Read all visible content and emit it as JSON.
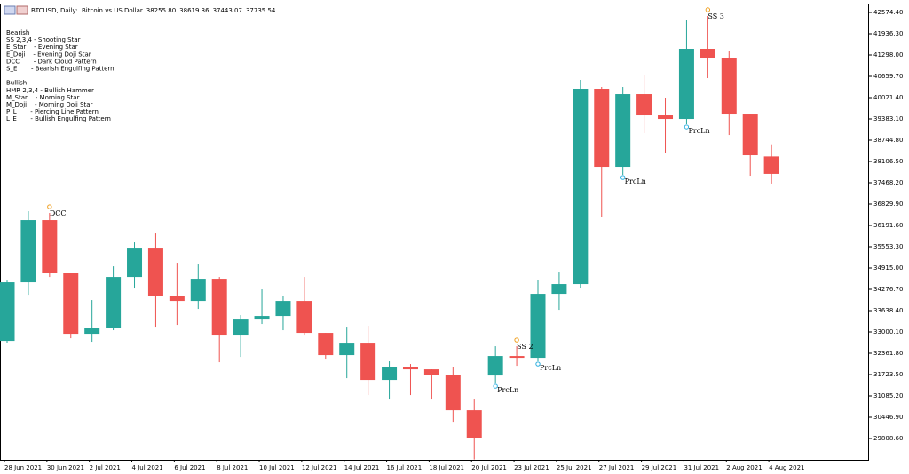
{
  "chart_data": {
    "type": "candlestick",
    "title": "BTCUSD, Daily:  Bitcoin vs US Dollar",
    "ohlc_text": [
      "38255.80",
      "38619.36",
      "37443.07",
      "37735.54"
    ],
    "notes": [
      "Bearish",
      "SS 2,3,4 - Shooting Star",
      "E_Star    - Evening Star",
      "E_Doji    - Evening Doji Star",
      "DCC       - Dark Cloud Pattern",
      "S_E       - Bearish Engulfing Pattern",
      "",
      "Bullish",
      "HMR 2,3,4 - Bullish Hammer",
      "M_Star    - Morning Star",
      "M_Doji    - Morning Doji Star",
      "P_L       - Piercing Line Pattern",
      "L_E       - Bullish Engulfing Pattern"
    ],
    "categories": [
      "28 Jun 2021",
      null,
      "30 Jun 2021",
      null,
      "2 Jul 2021",
      null,
      "4 Jul 2021",
      null,
      "6 Jul 2021",
      null,
      "8 Jul 2021",
      null,
      "10 Jul 2021",
      null,
      "12 Jul 2021",
      null,
      "14 Jul 2021",
      null,
      "16 Jul 2021",
      null,
      "18 Jul 2021",
      null,
      "20 Jul 2021",
      null,
      "23 Jul 2021",
      null,
      "25 Jul 2021",
      null,
      "27 Jul 2021",
      null,
      "29 Jul 2021",
      null,
      "31 Jul 2021",
      null,
      "2 Aug 2021",
      null,
      "4 Aug 2021"
    ],
    "open": [
      32732,
      34488,
      36350,
      34780,
      32945,
      33131,
      34647,
      35525,
      34089,
      33929,
      34594,
      32919,
      33397,
      33477,
      33929,
      32972,
      32307,
      32679,
      31562,
      31961,
      31881,
      31721,
      30657,
      31695,
      32280,
      32227,
      34142,
      34435,
      40287,
      37946,
      40127,
      39489,
      39382,
      41484,
      41218,
      39542,
      38255.8
    ],
    "high": [
      34540,
      36616,
      36563,
      34780,
      33956,
      34966,
      35685,
      35951,
      35073,
      35047,
      34647,
      33504,
      34275,
      34089,
      34647,
      32972,
      33158,
      33185,
      32121,
      32041,
      31881,
      31961,
      30977,
      32573,
      32573,
      34541,
      34807,
      40553,
      40340,
      40340,
      40712,
      40021,
      42362,
      42468,
      41431,
      39542,
      38619.36
    ],
    "low": [
      32680,
      34115,
      34647,
      32812,
      32706,
      33052,
      34302,
      33158,
      33211,
      33690,
      32094,
      32253,
      33238,
      33052,
      32919,
      32174,
      31615,
      31110,
      30977,
      31110,
      30977,
      30311,
      29180,
      31455,
      31987,
      32121,
      33663,
      34328,
      36430,
      37706,
      38957,
      38372,
      39223,
      40606,
      38903,
      37680,
      37443.07
    ],
    "close": [
      34488,
      36350,
      34780,
      32945,
      33131,
      34647,
      35525,
      34089,
      33929,
      34594,
      32919,
      33397,
      33477,
      33929,
      32972,
      32307,
      32679,
      31562,
      31961,
      31881,
      31721,
      30657,
      29833,
      32280,
      32227,
      34142,
      34435,
      40287,
      37946,
      40127,
      39489,
      39382,
      41484,
      41218,
      39542,
      38292,
      37735.54
    ],
    "up_color": "#26a69a",
    "down_color": "#ef5350",
    "annotations": [
      {
        "text": "DCC",
        "index": 2,
        "position": "above",
        "color": "#c0392b"
      },
      {
        "text": "SS 2",
        "index": 24,
        "position": "above",
        "color": "#c026c0"
      },
      {
        "text": "SS 3",
        "index": 33,
        "position": "above",
        "color": "#c026c0"
      },
      {
        "text": "PrcLn",
        "index": 23,
        "position": "below",
        "color": "#1f4fbf"
      },
      {
        "text": "PrcLn",
        "index": 25,
        "position": "below",
        "color": "#1f4fbf"
      },
      {
        "text": "PrcLn",
        "index": 29,
        "position": "below",
        "color": "#1f4fbf"
      },
      {
        "text": "PrcLn",
        "index": 32,
        "position": "below",
        "color": "#1f4fbf"
      }
    ],
    "ylim": [
      29170,
      42814
    ],
    "yticks": [
      {
        "value": 42574.4,
        "label": "42574.40"
      },
      {
        "value": 41936.3,
        "label": "41936.30"
      },
      {
        "value": 41298.0,
        "label": "41298.00"
      },
      {
        "value": 40659.7,
        "label": "40659.70"
      },
      {
        "value": 40021.4,
        "label": "40021.40"
      },
      {
        "value": 39383.1,
        "label": "39383.10"
      },
      {
        "value": 38744.8,
        "label": "38744.80"
      },
      {
        "value": 38106.5,
        "label": "38106.50"
      },
      {
        "value": 37468.2,
        "label": "37468.20"
      },
      {
        "value": 36829.9,
        "label": "36829.90"
      },
      {
        "value": 36191.6,
        "label": "36191.60"
      },
      {
        "value": 35553.3,
        "label": "35553.30"
      },
      {
        "value": 34915.0,
        "label": "34915.00"
      },
      {
        "value": 34276.7,
        "label": "34276.70"
      },
      {
        "value": 33638.4,
        "label": "33638.40"
      },
      {
        "value": 33000.1,
        "label": "33000.10"
      },
      {
        "value": 32361.8,
        "label": "32361.80"
      },
      {
        "value": 31723.5,
        "label": "31723.50"
      },
      {
        "value": 31085.2,
        "label": "31085.20"
      },
      {
        "value": 30446.9,
        "label": "30446.90"
      },
      {
        "value": 29808.6,
        "label": "29808.60"
      }
    ],
    "grid": false
  }
}
